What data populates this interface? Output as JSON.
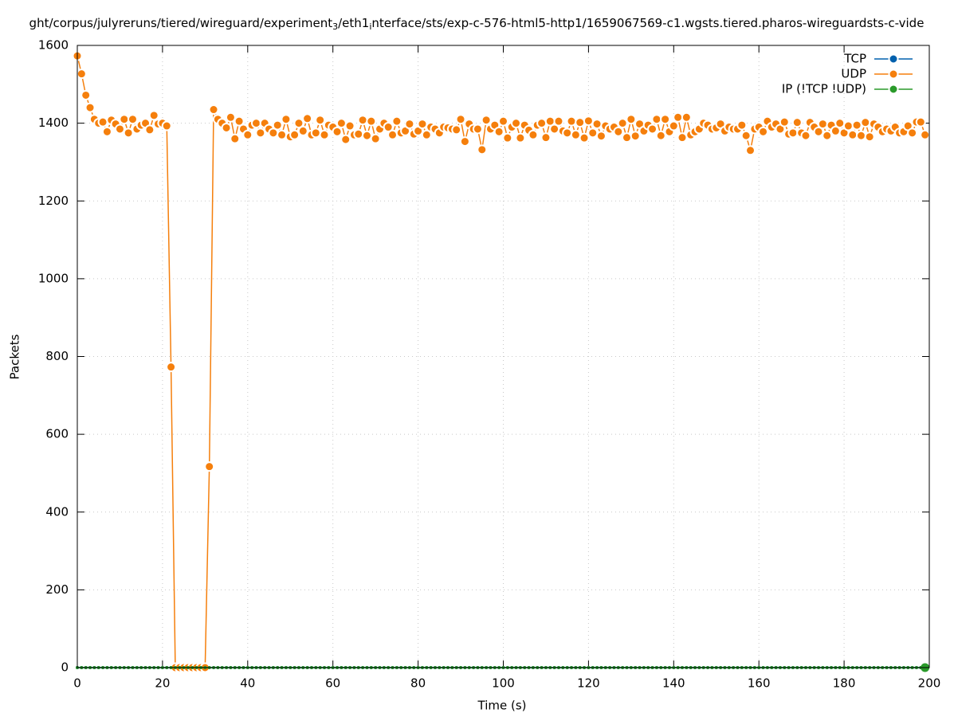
{
  "chart_data": {
    "type": "line",
    "title_parts": [
      "ght/corpus/julyreruns/tiered/wireguard/experiment",
      "3",
      "/eth1",
      "i",
      "nterface/sts/exp-c-576-html5-http1/1659067569-c1.wgsts.tiered.pharos-wireguardsts-c-vide"
    ],
    "xlabel": "Time (s)",
    "ylabel": "Packets",
    "xlim": [
      0,
      200
    ],
    "ylim": [
      0,
      1600
    ],
    "xticks": [
      0,
      20,
      40,
      60,
      80,
      100,
      120,
      140,
      160,
      180,
      200
    ],
    "yticks": [
      0,
      200,
      400,
      600,
      800,
      1000,
      1200,
      1400,
      1600
    ],
    "grid": true,
    "legend": "top-right",
    "x": [
      0,
      1,
      2,
      3,
      4,
      5,
      6,
      7,
      8,
      9,
      10,
      11,
      12,
      13,
      14,
      15,
      16,
      17,
      18,
      19,
      20,
      21,
      22,
      23,
      24,
      25,
      26,
      27,
      28,
      29,
      30,
      31,
      32,
      33,
      34,
      35,
      36,
      37,
      38,
      39,
      40,
      41,
      42,
      43,
      44,
      45,
      46,
      47,
      48,
      49,
      50,
      51,
      52,
      53,
      54,
      55,
      56,
      57,
      58,
      59,
      60,
      61,
      62,
      63,
      64,
      65,
      66,
      67,
      68,
      69,
      70,
      71,
      72,
      73,
      74,
      75,
      76,
      77,
      78,
      79,
      80,
      81,
      82,
      83,
      84,
      85,
      86,
      87,
      88,
      89,
      90,
      91,
      92,
      93,
      94,
      95,
      96,
      97,
      98,
      99,
      100,
      101,
      102,
      103,
      104,
      105,
      106,
      107,
      108,
      109,
      110,
      111,
      112,
      113,
      114,
      115,
      116,
      117,
      118,
      119,
      120,
      121,
      122,
      123,
      124,
      125,
      126,
      127,
      128,
      129,
      130,
      131,
      132,
      133,
      134,
      135,
      136,
      137,
      138,
      139,
      140,
      141,
      142,
      143,
      144,
      145,
      146,
      147,
      148,
      149,
      150,
      151,
      152,
      153,
      154,
      155,
      156,
      157,
      158,
      159,
      160,
      161,
      162,
      163,
      164,
      165,
      166,
      167,
      168,
      169,
      170,
      171,
      172,
      173,
      174,
      175,
      176,
      177,
      178,
      179,
      180,
      181,
      182,
      183,
      184,
      185,
      186,
      187,
      188,
      189,
      190,
      191,
      192,
      193,
      194,
      195,
      196,
      197,
      198,
      199
    ],
    "series": [
      {
        "name": "TCP",
        "color": "#0060ad",
        "values": [
          0,
          0,
          0,
          0,
          0,
          0,
          0,
          0,
          0,
          0,
          0,
          0,
          0,
          0,
          0,
          0,
          0,
          0,
          0,
          0,
          0,
          0,
          0,
          0,
          0,
          0,
          0,
          0,
          0,
          0,
          0,
          0,
          0,
          0,
          0,
          0,
          0,
          0,
          0,
          0,
          0,
          0,
          0,
          0,
          0,
          0,
          0,
          0,
          0,
          0,
          0,
          0,
          0,
          0,
          0,
          0,
          0,
          0,
          0,
          0,
          0,
          0,
          0,
          0,
          0,
          0,
          0,
          0,
          0,
          0,
          0,
          0,
          0,
          0,
          0,
          0,
          0,
          0,
          0,
          0,
          0,
          0,
          0,
          0,
          0,
          0,
          0,
          0,
          0,
          0,
          0,
          0,
          0,
          0,
          0,
          0,
          0,
          0,
          0,
          0,
          0,
          0,
          0,
          0,
          0,
          0,
          0,
          0,
          0,
          0,
          0,
          0,
          0,
          0,
          0,
          0,
          0,
          0,
          0,
          0,
          0,
          0,
          0,
          0,
          0,
          0,
          0,
          0,
          0,
          0,
          0,
          0,
          0,
          0,
          0,
          0,
          0,
          0,
          0,
          0,
          0,
          0,
          0,
          0,
          0,
          0,
          0,
          0,
          0,
          0,
          0,
          0,
          0,
          0,
          0,
          0,
          0,
          0,
          0,
          0,
          0,
          0,
          0,
          0,
          0,
          0,
          0,
          0,
          0,
          0,
          0,
          0,
          0,
          0,
          0,
          0,
          0,
          0,
          0,
          0,
          0,
          0,
          0,
          0,
          0,
          0,
          0,
          0,
          0,
          0,
          0,
          0,
          0,
          0,
          0,
          0,
          0,
          0,
          0,
          0
        ]
      },
      {
        "name": "UDP",
        "color": "#f57f0c",
        "values": [
          1573,
          1527,
          1472,
          1440,
          1410,
          1400,
          1403,
          1378,
          1408,
          1398,
          1385,
          1410,
          1375,
          1410,
          1385,
          1395,
          1400,
          1383,
          1420,
          1398,
          1400,
          1393,
          773,
          0,
          0,
          0,
          0,
          0,
          0,
          0,
          0,
          517,
          1435,
          1410,
          1400,
          1388,
          1415,
          1360,
          1405,
          1385,
          1370,
          1395,
          1400,
          1375,
          1400,
          1385,
          1375,
          1395,
          1370,
          1410,
          1365,
          1370,
          1400,
          1380,
          1412,
          1370,
          1375,
          1408,
          1370,
          1395,
          1390,
          1378,
          1400,
          1358,
          1393,
          1370,
          1372,
          1408,
          1368,
          1405,
          1360,
          1385,
          1400,
          1390,
          1370,
          1405,
          1375,
          1380,
          1398,
          1372,
          1380,
          1398,
          1370,
          1390,
          1385,
          1375,
          1390,
          1388,
          1385,
          1383,
          1410,
          1353,
          1398,
          1385,
          1385,
          1332,
          1408,
          1385,
          1395,
          1378,
          1405,
          1362,
          1390,
          1400,
          1362,
          1395,
          1382,
          1370,
          1395,
          1400,
          1363,
          1405,
          1385,
          1405,
          1380,
          1375,
          1405,
          1370,
          1402,
          1362,
          1406,
          1375,
          1398,
          1367,
          1393,
          1385,
          1390,
          1378,
          1400,
          1363,
          1410,
          1367,
          1398,
          1380,
          1395,
          1385,
          1410,
          1368,
          1410,
          1378,
          1393,
          1415,
          1363,
          1415,
          1370,
          1378,
          1385,
          1400,
          1395,
          1385,
          1388,
          1398,
          1380,
          1390,
          1385,
          1385,
          1395,
          1368,
          1330,
          1385,
          1390,
          1378,
          1405,
          1390,
          1398,
          1385,
          1403,
          1372,
          1375,
          1402,
          1375,
          1368,
          1402,
          1390,
          1378,
          1398,
          1368,
          1395,
          1380,
          1400,
          1375,
          1393,
          1370,
          1395,
          1368,
          1402,
          1365,
          1398,
          1390,
          1378,
          1385,
          1380,
          1390,
          1375,
          1378,
          1393,
          1375,
          1403,
          1403,
          1370
        ]
      },
      {
        "name": "IP (!TCP  !UDP)",
        "color": "#2a9a2a",
        "values": [
          0,
          0,
          0,
          0,
          0,
          0,
          0,
          0,
          0,
          0,
          0,
          0,
          0,
          0,
          0,
          0,
          0,
          0,
          0,
          0,
          0,
          0,
          0,
          0,
          0,
          0,
          0,
          0,
          0,
          0,
          0,
          0,
          0,
          0,
          0,
          0,
          0,
          0,
          0,
          0,
          0,
          0,
          0,
          0,
          0,
          0,
          0,
          0,
          0,
          0,
          0,
          0,
          0,
          0,
          0,
          0,
          0,
          0,
          0,
          0,
          0,
          0,
          0,
          0,
          0,
          0,
          0,
          0,
          0,
          0,
          0,
          0,
          0,
          0,
          0,
          0,
          0,
          0,
          0,
          0,
          0,
          0,
          0,
          0,
          0,
          0,
          0,
          0,
          0,
          0,
          0,
          0,
          0,
          0,
          0,
          0,
          0,
          0,
          0,
          0,
          0,
          0,
          0,
          0,
          0,
          0,
          0,
          0,
          0,
          0,
          0,
          0,
          0,
          0,
          0,
          0,
          0,
          0,
          0,
          0,
          0,
          0,
          0,
          0,
          0,
          0,
          0,
          0,
          0,
          0,
          0,
          0,
          0,
          0,
          0,
          0,
          0,
          0,
          0,
          0,
          0,
          0,
          0,
          0,
          0,
          0,
          0,
          0,
          0,
          0,
          0,
          0,
          0,
          0,
          0,
          0,
          0,
          0,
          0,
          0,
          0,
          0,
          0,
          0,
          0,
          0,
          0,
          0,
          0,
          0,
          0,
          0,
          0,
          0,
          0,
          0,
          0,
          0,
          0,
          0,
          0,
          0,
          0,
          0,
          0,
          0,
          0,
          0,
          0,
          0,
          0,
          0,
          0,
          0,
          0,
          0,
          0,
          0,
          0,
          0
        ]
      }
    ]
  }
}
